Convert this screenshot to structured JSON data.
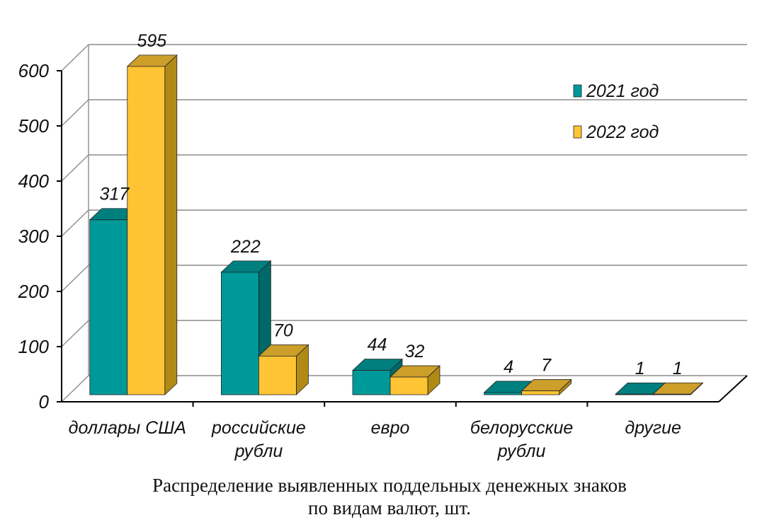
{
  "chart_data": {
    "type": "bar",
    "categories": [
      [
        "доллары США"
      ],
      [
        "российские",
        "рубли"
      ],
      [
        "евро"
      ],
      [
        "белорусские",
        "рубли"
      ],
      [
        "другие"
      ]
    ],
    "series": [
      {
        "name": "2021 год",
        "values": [
          317,
          222,
          44,
          4,
          1
        ]
      },
      {
        "name": "2022 год",
        "values": [
          595,
          70,
          32,
          7,
          1
        ]
      }
    ],
    "ylim": [
      0,
      600
    ],
    "y_ticks": [
      0,
      100,
      200,
      300,
      400,
      500,
      600
    ],
    "grid": true,
    "legend_position": "top-right",
    "colors": {
      "series1": "#009999",
      "series1_side": "#006868",
      "series1_top": "#007f7f",
      "series2": "#ffc433",
      "series2_side": "#b08a14",
      "series2_top": "#cc9e2a",
      "gridline": "#8c8c8c",
      "axis": "#000000"
    }
  },
  "caption": {
    "line1": "Распределение выявленных поддельных денежных знаков",
    "line2": "по видам валют, шт."
  }
}
